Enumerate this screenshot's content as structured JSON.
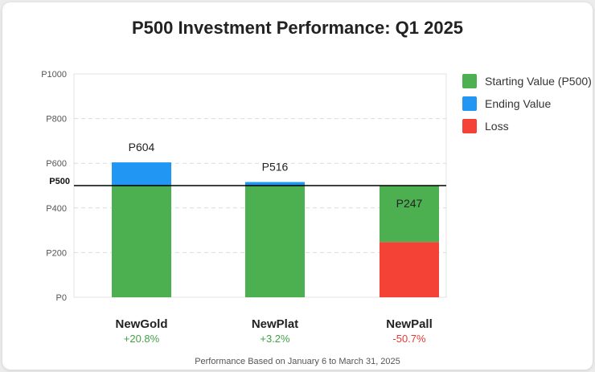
{
  "chart_data": {
    "type": "bar",
    "title": "P500 Investment Performance: Q1 2025",
    "categories": [
      "NewGold",
      "NewPlat",
      "NewPall"
    ],
    "changes": [
      "+20.8%",
      "+3.2%",
      "-50.7%"
    ],
    "starting_value": 500,
    "ending_values": [
      604,
      516,
      247
    ],
    "value_labels": [
      "P604",
      "P516",
      "P247"
    ],
    "ylim": [
      0,
      1000
    ],
    "yticks": [
      0,
      200,
      400,
      600,
      800,
      1000
    ],
    "ytick_labels": [
      "P0",
      "P200",
      "P400",
      "P600",
      "P800",
      "P1000"
    ],
    "reference_line": {
      "value": 500,
      "label": "P500"
    },
    "grid": true,
    "legend_position": "right",
    "series": [
      {
        "name": "Starting Value (P500)",
        "color": "#4caf50"
      },
      {
        "name": "Ending Value",
        "color": "#2196f3"
      },
      {
        "name": "Loss",
        "color": "#f44336"
      }
    ],
    "colors": {
      "gain": "#43a047",
      "loss": "#e53935"
    },
    "footnote": "Performance Based on January 6 to March 31, 2025"
  }
}
